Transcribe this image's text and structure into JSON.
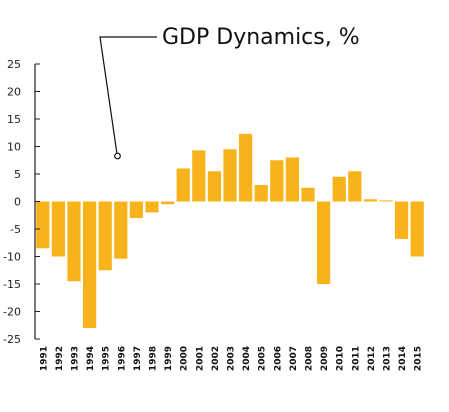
{
  "chart_data": {
    "type": "bar",
    "title": "GDP Dynamics, %",
    "categories": [
      "1991",
      "1992",
      "1993",
      "1994",
      "1995",
      "1996",
      "1997",
      "1998",
      "1999",
      "2000",
      "2001",
      "2002",
      "2003",
      "2004",
      "2005",
      "2006",
      "2007",
      "2008",
      "2009",
      "2010",
      "2011",
      "2012",
      "2013",
      "2014",
      "2015"
    ],
    "values": [
      -8.5,
      -10.0,
      -14.5,
      -23.0,
      -12.5,
      -10.4,
      -3.0,
      -2.0,
      -0.5,
      6.0,
      9.3,
      5.5,
      9.5,
      12.3,
      3.0,
      7.5,
      8.0,
      2.5,
      -15.0,
      4.5,
      5.5,
      0.4,
      0.2,
      -6.8,
      -10.0
    ],
    "yticks": [
      25,
      20,
      15,
      10,
      5,
      0,
      -5,
      -10,
      -15,
      -20,
      -25
    ],
    "ylim": [
      -25,
      25
    ],
    "bar_color": "#f8b31a",
    "axis_color": "#1f1f1f",
    "grid": false,
    "legend": "none"
  }
}
